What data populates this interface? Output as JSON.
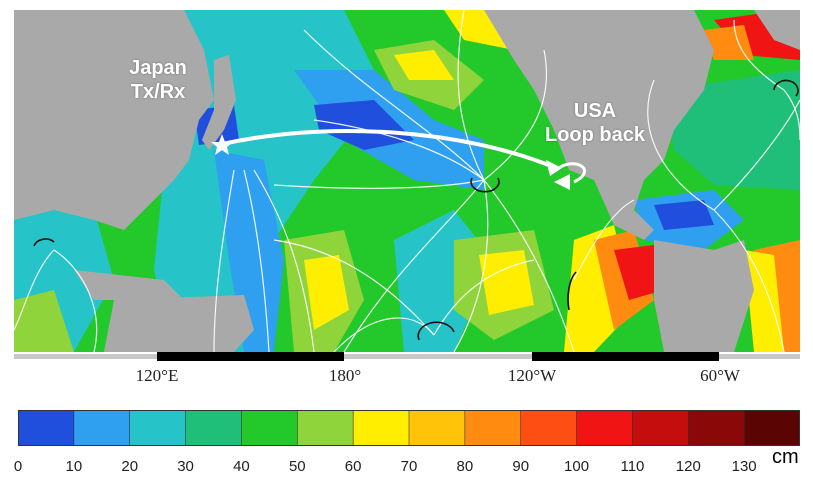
{
  "labels": {
    "origin_line1": "Japan",
    "origin_line2": "Tx/Rx",
    "dest_line1": "USA",
    "dest_line2": "Loop back"
  },
  "longitude_labels": [
    "120°E",
    "180°",
    "120°W",
    "60°W"
  ],
  "colorbar": {
    "unit": "cm",
    "ticks": [
      "0",
      "10",
      "20",
      "30",
      "40",
      "50",
      "60",
      "70",
      "80",
      "90",
      "100",
      "110",
      "120",
      "130"
    ],
    "colors": [
      "#1f4fdc",
      "#2fa0f0",
      "#26c4c8",
      "#1fbf7a",
      "#23c82a",
      "#8fd43a",
      "#ffee00",
      "#ffc40a",
      "#ff8c10",
      "#ff4e14",
      "#f01414",
      "#c40e0e",
      "#8a0808",
      "#5a0404"
    ]
  },
  "colors": {
    "land": "#a9a9a9",
    "contour": "#ffffff",
    "path": "#ffffff"
  }
}
